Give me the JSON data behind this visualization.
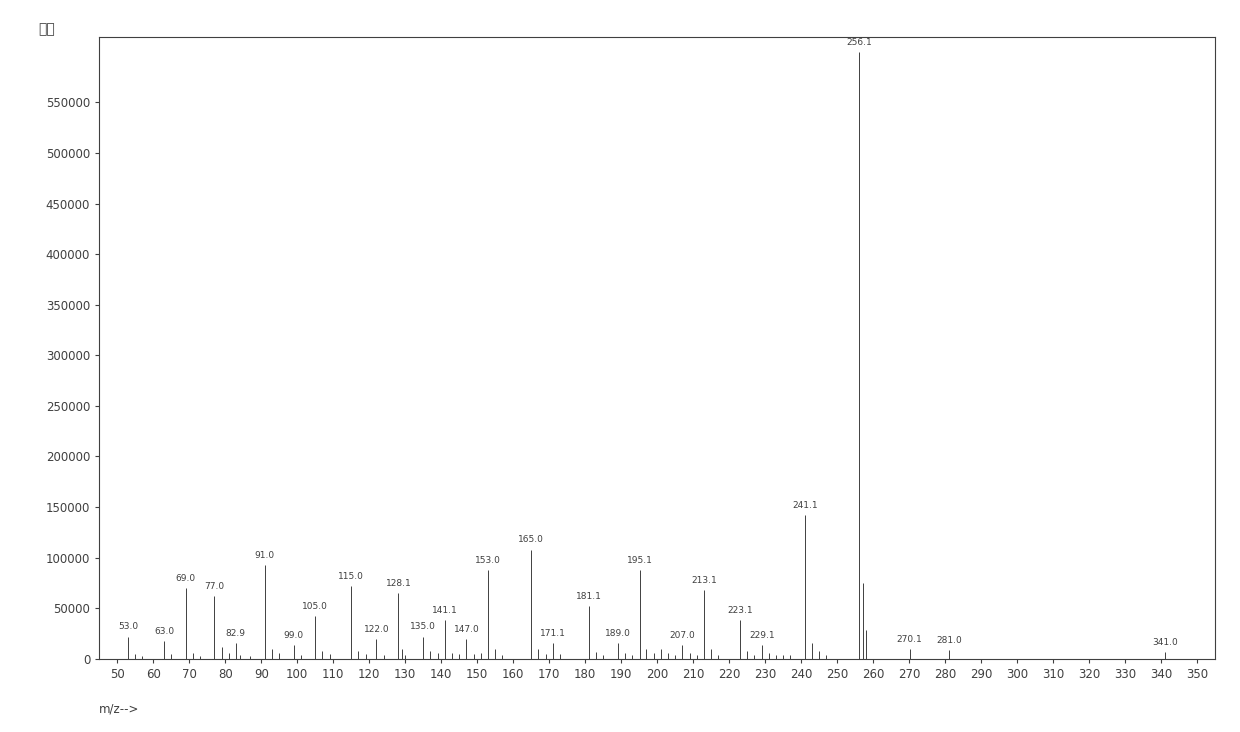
{
  "peaks": [
    {
      "mz": 53.0,
      "intensity": 22000,
      "label": "53.0"
    },
    {
      "mz": 55.0,
      "intensity": 5000,
      "label": ""
    },
    {
      "mz": 57.0,
      "intensity": 3000,
      "label": ""
    },
    {
      "mz": 63.0,
      "intensity": 18000,
      "label": "63.0"
    },
    {
      "mz": 65.0,
      "intensity": 5000,
      "label": ""
    },
    {
      "mz": 69.0,
      "intensity": 70000,
      "label": "69.0"
    },
    {
      "mz": 71.0,
      "intensity": 6000,
      "label": ""
    },
    {
      "mz": 73.0,
      "intensity": 3000,
      "label": ""
    },
    {
      "mz": 77.0,
      "intensity": 62000,
      "label": "77.0"
    },
    {
      "mz": 79.0,
      "intensity": 12000,
      "label": ""
    },
    {
      "mz": 81.0,
      "intensity": 6000,
      "label": ""
    },
    {
      "mz": 82.9,
      "intensity": 16000,
      "label": "82.9"
    },
    {
      "mz": 84.0,
      "intensity": 4000,
      "label": ""
    },
    {
      "mz": 87.0,
      "intensity": 3000,
      "label": ""
    },
    {
      "mz": 91.0,
      "intensity": 93000,
      "label": "91.0"
    },
    {
      "mz": 93.0,
      "intensity": 10000,
      "label": ""
    },
    {
      "mz": 95.0,
      "intensity": 6000,
      "label": ""
    },
    {
      "mz": 99.0,
      "intensity": 14000,
      "label": "99.0"
    },
    {
      "mz": 101.0,
      "intensity": 4000,
      "label": ""
    },
    {
      "mz": 105.0,
      "intensity": 42000,
      "label": "105.0"
    },
    {
      "mz": 107.0,
      "intensity": 8000,
      "label": ""
    },
    {
      "mz": 109.0,
      "intensity": 5000,
      "label": ""
    },
    {
      "mz": 115.0,
      "intensity": 72000,
      "label": "115.0"
    },
    {
      "mz": 117.0,
      "intensity": 8000,
      "label": ""
    },
    {
      "mz": 119.0,
      "intensity": 5000,
      "label": ""
    },
    {
      "mz": 122.0,
      "intensity": 20000,
      "label": "122.0"
    },
    {
      "mz": 124.0,
      "intensity": 4000,
      "label": ""
    },
    {
      "mz": 128.1,
      "intensity": 65000,
      "label": "128.1"
    },
    {
      "mz": 129.0,
      "intensity": 10000,
      "label": ""
    },
    {
      "mz": 130.0,
      "intensity": 4000,
      "label": ""
    },
    {
      "mz": 135.0,
      "intensity": 22000,
      "label": "135.0"
    },
    {
      "mz": 137.0,
      "intensity": 8000,
      "label": ""
    },
    {
      "mz": 139.0,
      "intensity": 6000,
      "label": ""
    },
    {
      "mz": 141.1,
      "intensity": 38000,
      "label": "141.1"
    },
    {
      "mz": 143.0,
      "intensity": 6000,
      "label": ""
    },
    {
      "mz": 145.0,
      "intensity": 5000,
      "label": ""
    },
    {
      "mz": 147.0,
      "intensity": 20000,
      "label": "147.0"
    },
    {
      "mz": 149.0,
      "intensity": 5000,
      "label": ""
    },
    {
      "mz": 151.0,
      "intensity": 6000,
      "label": ""
    },
    {
      "mz": 153.0,
      "intensity": 88000,
      "label": "153.0"
    },
    {
      "mz": 155.0,
      "intensity": 10000,
      "label": ""
    },
    {
      "mz": 157.0,
      "intensity": 4000,
      "label": ""
    },
    {
      "mz": 165.0,
      "intensity": 108000,
      "label": "165.0"
    },
    {
      "mz": 167.0,
      "intensity": 10000,
      "label": ""
    },
    {
      "mz": 169.0,
      "intensity": 5000,
      "label": ""
    },
    {
      "mz": 171.1,
      "intensity": 16000,
      "label": "171.1"
    },
    {
      "mz": 173.0,
      "intensity": 5000,
      "label": ""
    },
    {
      "mz": 181.1,
      "intensity": 52000,
      "label": "181.1"
    },
    {
      "mz": 183.0,
      "intensity": 7000,
      "label": ""
    },
    {
      "mz": 185.0,
      "intensity": 4000,
      "label": ""
    },
    {
      "mz": 189.0,
      "intensity": 16000,
      "label": "189.0"
    },
    {
      "mz": 191.0,
      "intensity": 6000,
      "label": ""
    },
    {
      "mz": 193.0,
      "intensity": 4000,
      "label": ""
    },
    {
      "mz": 195.1,
      "intensity": 88000,
      "label": "195.1"
    },
    {
      "mz": 197.0,
      "intensity": 10000,
      "label": ""
    },
    {
      "mz": 199.0,
      "intensity": 6000,
      "label": ""
    },
    {
      "mz": 201.0,
      "intensity": 10000,
      "label": ""
    },
    {
      "mz": 203.0,
      "intensity": 6000,
      "label": ""
    },
    {
      "mz": 205.0,
      "intensity": 4000,
      "label": ""
    },
    {
      "mz": 207.0,
      "intensity": 14000,
      "label": "207.0"
    },
    {
      "mz": 209.0,
      "intensity": 6000,
      "label": ""
    },
    {
      "mz": 211.0,
      "intensity": 4000,
      "label": ""
    },
    {
      "mz": 213.1,
      "intensity": 68000,
      "label": "213.1"
    },
    {
      "mz": 215.0,
      "intensity": 10000,
      "label": ""
    },
    {
      "mz": 217.0,
      "intensity": 4000,
      "label": ""
    },
    {
      "mz": 223.1,
      "intensity": 38000,
      "label": "223.1"
    },
    {
      "mz": 225.0,
      "intensity": 8000,
      "label": ""
    },
    {
      "mz": 227.0,
      "intensity": 4000,
      "label": ""
    },
    {
      "mz": 229.1,
      "intensity": 14000,
      "label": "229.1"
    },
    {
      "mz": 231.0,
      "intensity": 6000,
      "label": ""
    },
    {
      "mz": 233.0,
      "intensity": 4000,
      "label": ""
    },
    {
      "mz": 235.0,
      "intensity": 4000,
      "label": ""
    },
    {
      "mz": 237.0,
      "intensity": 4000,
      "label": ""
    },
    {
      "mz": 241.1,
      "intensity": 142000,
      "label": "241.1"
    },
    {
      "mz": 243.0,
      "intensity": 16000,
      "label": ""
    },
    {
      "mz": 245.0,
      "intensity": 8000,
      "label": ""
    },
    {
      "mz": 247.0,
      "intensity": 4000,
      "label": ""
    },
    {
      "mz": 256.1,
      "intensity": 600000,
      "label": "256.1"
    },
    {
      "mz": 257.1,
      "intensity": 75000,
      "label": ""
    },
    {
      "mz": 258.0,
      "intensity": 28000,
      "label": ""
    },
    {
      "mz": 270.1,
      "intensity": 10000,
      "label": "270.1"
    },
    {
      "mz": 281.0,
      "intensity": 9000,
      "label": "281.0"
    },
    {
      "mz": 341.0,
      "intensity": 7000,
      "label": "341.0"
    }
  ],
  "xlim": [
    45,
    355
  ],
  "ylim": [
    0,
    615000
  ],
  "xticks": [
    50,
    60,
    70,
    80,
    90,
    100,
    110,
    120,
    130,
    140,
    150,
    160,
    170,
    180,
    190,
    200,
    210,
    220,
    230,
    240,
    250,
    260,
    270,
    280,
    290,
    300,
    310,
    320,
    330,
    340,
    350
  ],
  "yticks": [
    0,
    50000,
    100000,
    150000,
    200000,
    250000,
    300000,
    350000,
    400000,
    450000,
    500000,
    550000
  ],
  "ytick_labels": [
    "0",
    "50000",
    "100000",
    "150000",
    "200000",
    "250000",
    "300000",
    "350000",
    "400000",
    "450000",
    "500000",
    "550000"
  ],
  "ylabel": "丰度",
  "xlabel": "m/z-->",
  "line_color": "#404040",
  "background_color": "#ffffff",
  "label_fontsize": 6.5,
  "axis_fontsize": 8.5
}
